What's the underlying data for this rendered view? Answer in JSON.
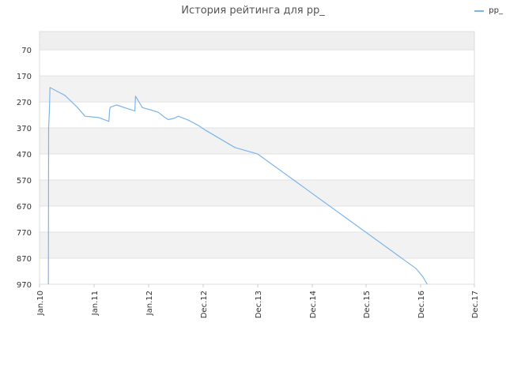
{
  "chart_data": {
    "type": "line",
    "title": "История рейтинга для pp_",
    "xlabel": "",
    "ylabel": "",
    "y_inverted": true,
    "ylim": [
      970,
      0
    ],
    "y_ticks": [
      70,
      170,
      270,
      370,
      470,
      570,
      670,
      770,
      870,
      970
    ],
    "x_ticks": [
      "Jan.10",
      "Jan.11",
      "Jan.12",
      "Dec.12",
      "Dec.13",
      "Dec.14",
      "Dec.15",
      "Dec.16",
      "Dec.17"
    ],
    "grid": true,
    "legend_position": "top-right",
    "series": [
      {
        "name": "pp_",
        "color": "#7cb5ec",
        "points": [
          {
            "x": "2010-03-01",
            "y": 970
          },
          {
            "x": "2010-03-03",
            "y": 370
          },
          {
            "x": "2010-03-08",
            "y": 300
          },
          {
            "x": "2010-03-12",
            "y": 215
          },
          {
            "x": "2010-05-01",
            "y": 230
          },
          {
            "x": "2010-06-20",
            "y": 245
          },
          {
            "x": "2010-09-10",
            "y": 290
          },
          {
            "x": "2010-11-01",
            "y": 325
          },
          {
            "x": "2011-02-01",
            "y": 330
          },
          {
            "x": "2011-03-20",
            "y": 340
          },
          {
            "x": "2011-04-10",
            "y": 345
          },
          {
            "x": "2011-04-15",
            "y": 300
          },
          {
            "x": "2011-04-20",
            "y": 290
          },
          {
            "x": "2011-06-01",
            "y": 282
          },
          {
            "x": "2011-10-01",
            "y": 305
          },
          {
            "x": "2011-10-05",
            "y": 248
          },
          {
            "x": "2011-11-20",
            "y": 292
          },
          {
            "x": "2012-01-10",
            "y": 300
          },
          {
            "x": "2012-03-01",
            "y": 310
          },
          {
            "x": "2012-04-10",
            "y": 330
          },
          {
            "x": "2012-05-01",
            "y": 338
          },
          {
            "x": "2012-06-10",
            "y": 332
          },
          {
            "x": "2012-07-01",
            "y": 325
          },
          {
            "x": "2012-09-01",
            "y": 340
          },
          {
            "x": "2012-11-01",
            "y": 360
          },
          {
            "x": "2012-12-15",
            "y": 378
          },
          {
            "x": "2013-07-01",
            "y": 445
          },
          {
            "x": "2013-12-01",
            "y": 470
          },
          {
            "x": "2016-11-01",
            "y": 910
          },
          {
            "x": "2016-12-15",
            "y": 940
          },
          {
            "x": "2017-01-15",
            "y": 970
          }
        ]
      }
    ]
  }
}
